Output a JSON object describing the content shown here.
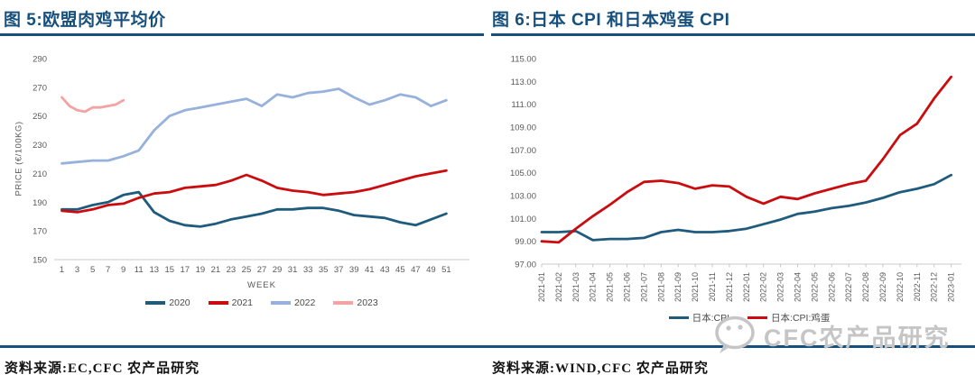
{
  "page": {
    "background": "#ffffff",
    "accent_color": "#17507c"
  },
  "watermark": {
    "icon": "wechat-icon",
    "text": "CFC农产品研究",
    "color": "#c5c5c5"
  },
  "sources": {
    "left": "资料来源:EC,CFC 农产品研究",
    "right": "资料来源:WIND,CFC 农产品研究"
  },
  "chart_data": [
    {
      "type": "line",
      "title": "图 5:欧盟肉鸡平均价",
      "xlabel": "WEEK",
      "ylabel": "PRICE (€/100KG)",
      "xlim": [
        0,
        54
      ],
      "ylim": [
        150,
        290
      ],
      "y_ticks": [
        150,
        170,
        190,
        210,
        230,
        250,
        270,
        290
      ],
      "x_ticks": [
        1,
        3,
        5,
        7,
        9,
        11,
        13,
        15,
        17,
        19,
        21,
        23,
        25,
        27,
        29,
        31,
        33,
        35,
        37,
        39,
        41,
        43,
        45,
        47,
        49,
        51
      ],
      "grid": false,
      "legend_position": "bottom",
      "axis_color": "#c8c8c8",
      "tick_color": "#595959",
      "series": [
        {
          "name": "2020",
          "color": "#1f5b7d",
          "x": [
            1,
            3,
            5,
            7,
            9,
            11,
            13,
            15,
            17,
            19,
            21,
            23,
            25,
            27,
            29,
            31,
            33,
            35,
            37,
            39,
            41,
            43,
            45,
            47,
            49,
            51
          ],
          "values": [
            185,
            185,
            188,
            190,
            195,
            197,
            183,
            177,
            174,
            173,
            175,
            178,
            180,
            182,
            185,
            185,
            186,
            186,
            184,
            181,
            180,
            179,
            176,
            174,
            178,
            182
          ]
        },
        {
          "name": "2021",
          "color": "#cb0c0f",
          "x": [
            1,
            3,
            5,
            7,
            9,
            11,
            13,
            15,
            17,
            19,
            21,
            23,
            25,
            27,
            29,
            31,
            33,
            35,
            37,
            39,
            41,
            43,
            45,
            47,
            49,
            51
          ],
          "values": [
            184,
            183,
            185,
            188,
            189,
            193,
            196,
            197,
            200,
            201,
            202,
            205,
            209,
            205,
            200,
            198,
            197,
            195,
            196,
            197,
            199,
            202,
            205,
            208,
            210,
            212
          ]
        },
        {
          "name": "2022",
          "color": "#97b1dd",
          "x": [
            1,
            3,
            5,
            7,
            9,
            11,
            13,
            15,
            17,
            19,
            21,
            23,
            25,
            27,
            29,
            31,
            33,
            35,
            37,
            39,
            41,
            43,
            45,
            47,
            49,
            51
          ],
          "values": [
            217,
            218,
            219,
            219,
            222,
            226,
            240,
            250,
            254,
            256,
            258,
            260,
            262,
            257,
            265,
            263,
            266,
            267,
            269,
            263,
            258,
            261,
            265,
            263,
            257,
            261
          ]
        },
        {
          "name": "2023",
          "color": "#f4a2a2",
          "x": [
            1,
            2,
            3,
            4,
            5,
            6,
            7,
            8,
            9
          ],
          "values": [
            263,
            257,
            254,
            253,
            256,
            256,
            257,
            258,
            261
          ]
        }
      ]
    },
    {
      "type": "line",
      "title": "图 6:日本 CPI 和日本鸡蛋 CPI",
      "xlabel": "",
      "ylabel": "",
      "ylim": [
        97,
        115
      ],
      "y_ticks": [
        97,
        99,
        101,
        103,
        105,
        107,
        109,
        111,
        113,
        115
      ],
      "y_tick_format": "2dp",
      "grid": false,
      "legend_position": "bottom",
      "axis_color": "#c8c8c8",
      "tick_color": "#595959",
      "categories": [
        "2021-01",
        "2021-02",
        "2021-03",
        "2021-04",
        "2021-05",
        "2021-06",
        "2021-07",
        "2021-08",
        "2021-09",
        "2021-10",
        "2021-11",
        "2021-12",
        "2022-01",
        "2022-02",
        "2022-03",
        "2022-04",
        "2022-05",
        "2022-06",
        "2022-07",
        "2022-08",
        "2022-09",
        "2022-10",
        "2022-11",
        "2022-12",
        "2023-01"
      ],
      "series": [
        {
          "name": "日本:CPI",
          "color": "#1f5b7d",
          "values": [
            99.8,
            99.8,
            99.9,
            99.1,
            99.2,
            99.2,
            99.3,
            99.8,
            100.0,
            99.8,
            99.8,
            99.9,
            100.1,
            100.5,
            100.9,
            101.4,
            101.6,
            101.9,
            102.1,
            102.4,
            102.8,
            103.3,
            103.6,
            104.0,
            104.8
          ]
        },
        {
          "name": "日本:CPI:鸡蛋",
          "color": "#cb0c0f",
          "values": [
            99.0,
            98.9,
            100.1,
            101.2,
            102.2,
            103.3,
            104.2,
            104.3,
            104.1,
            103.6,
            103.9,
            103.8,
            102.9,
            102.3,
            102.9,
            102.7,
            103.2,
            103.6,
            104.0,
            104.3,
            106.2,
            108.3,
            109.3,
            111.5,
            113.4
          ]
        }
      ]
    }
  ]
}
